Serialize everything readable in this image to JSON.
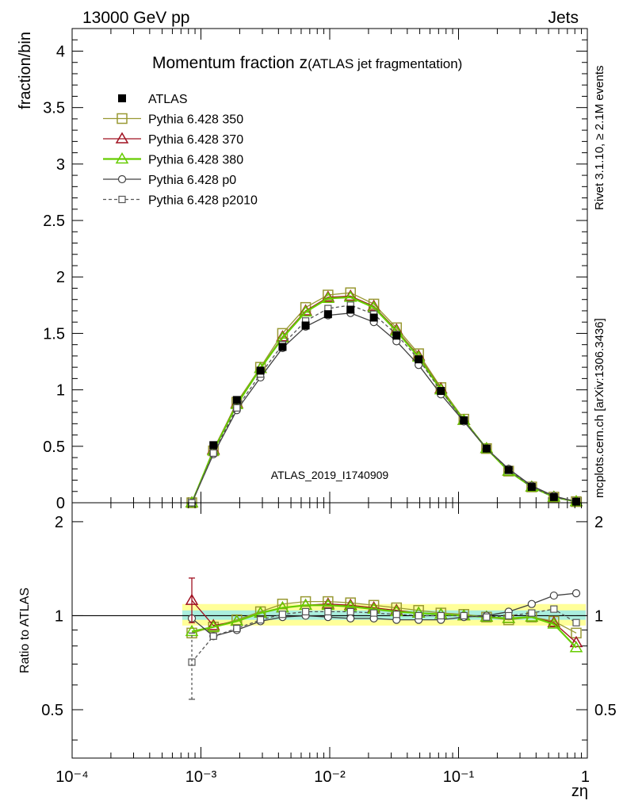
{
  "header": {
    "left": "13000 GeV pp",
    "right": "Jets",
    "side_top": "Rivet 3.1.10, ≥ 2.1M events",
    "side_bottom": "mcplots.cern.ch [arXiv:1306.3436]"
  },
  "chart_data": {
    "type": "scatter",
    "title_main": "Momentum fraction z",
    "title_sub": "(ATLAS jet fragmentation)",
    "ylabel": "fraction/bin",
    "ratio_ylabel": "Ratio to ATLAS",
    "xlabel": "zη",
    "watermark": "ATLAS_2019_I1740909",
    "xscale": "log",
    "xlim": [
      0.0001,
      1
    ],
    "ylim": [
      0,
      4.2
    ],
    "ratio_ylim": [
      0.35,
      2.3
    ],
    "x_tick_labels": [
      "10⁻⁴",
      "10⁻³",
      "10⁻²",
      "10⁻¹",
      "1"
    ],
    "y_tick_labels": [
      "0",
      "0.5",
      "1",
      "1.5",
      "2",
      "2.5",
      "3",
      "3.5",
      "4"
    ],
    "ratio_tick_labels": [
      "0.5",
      "1",
      "2"
    ],
    "legend_position": "top-left",
    "x": [
      0.00085,
      0.00125,
      0.0019,
      0.0029,
      0.0043,
      0.0065,
      0.0097,
      0.0145,
      0.022,
      0.033,
      0.049,
      0.073,
      0.11,
      0.165,
      0.245,
      0.37,
      0.55,
      0.82
    ],
    "data": {
      "name": "ATLAS",
      "values": [
        0.0,
        0.51,
        0.91,
        1.17,
        1.38,
        1.57,
        1.67,
        1.71,
        1.64,
        1.48,
        1.27,
        0.99,
        0.73,
        0.48,
        0.29,
        0.14,
        0.05,
        0.01
      ]
    },
    "series": [
      {
        "name": "Pythia 6.428 350",
        "color": "#999933",
        "marker": "square-open",
        "dash": "solid",
        "values": [
          0.0,
          0.46,
          0.89,
          1.2,
          1.5,
          1.73,
          1.84,
          1.86,
          1.76,
          1.55,
          1.32,
          1.02,
          0.74,
          0.48,
          0.28,
          0.14,
          0.05,
          0.01
        ],
        "ratio": [
          0.88,
          0.92,
          0.97,
          1.03,
          1.09,
          1.11,
          1.11,
          1.1,
          1.08,
          1.06,
          1.04,
          1.02,
          1.01,
          0.99,
          0.97,
          0.99,
          0.96,
          0.88
        ]
      },
      {
        "name": "Pythia 6.428 370",
        "color": "#a01020",
        "marker": "triangle-open",
        "dash": "solid",
        "values": [
          0.0,
          0.47,
          0.88,
          1.19,
          1.47,
          1.7,
          1.82,
          1.83,
          1.74,
          1.53,
          1.3,
          1.01,
          0.73,
          0.48,
          0.28,
          0.14,
          0.05,
          0.01
        ],
        "ratio": [
          1.12,
          0.93,
          0.96,
          1.02,
          1.06,
          1.08,
          1.09,
          1.08,
          1.06,
          1.04,
          1.02,
          1.01,
          1.0,
          0.99,
          0.98,
          0.99,
          0.95,
          0.82
        ]
      },
      {
        "name": "Pythia 6.428 380",
        "color": "#66cc00",
        "marker": "triangle-open",
        "dash": "solid",
        "values": [
          0.0,
          0.46,
          0.87,
          1.19,
          1.46,
          1.69,
          1.81,
          1.82,
          1.73,
          1.52,
          1.29,
          1.0,
          0.73,
          0.48,
          0.28,
          0.14,
          0.05,
          0.01
        ],
        "ratio": [
          0.89,
          0.92,
          0.96,
          1.02,
          1.06,
          1.08,
          1.08,
          1.07,
          1.05,
          1.03,
          1.02,
          1.01,
          1.0,
          0.99,
          0.98,
          0.99,
          0.94,
          0.79
        ]
      },
      {
        "name": "Pythia 6.428 p0",
        "color": "#404040",
        "marker": "circle-open",
        "dash": "solid",
        "values": [
          0.0,
          0.43,
          0.82,
          1.11,
          1.37,
          1.56,
          1.66,
          1.68,
          1.6,
          1.43,
          1.22,
          0.96,
          0.72,
          0.48,
          0.3,
          0.15,
          0.06,
          0.01
        ],
        "ratio": [
          0.98,
          0.86,
          0.9,
          0.96,
          0.99,
          1.0,
          0.99,
          0.98,
          0.98,
          0.97,
          0.97,
          0.97,
          0.99,
          1.0,
          1.03,
          1.09,
          1.16,
          1.18
        ]
      },
      {
        "name": "Pythia 6.428 p2010",
        "color": "#555555",
        "marker": "square-open-small",
        "dash": "dashed",
        "values": [
          0.0,
          0.44,
          0.84,
          1.14,
          1.4,
          1.61,
          1.72,
          1.75,
          1.67,
          1.49,
          1.27,
          0.99,
          0.73,
          0.48,
          0.29,
          0.14,
          0.05,
          0.01
        ],
        "ratio": [
          0.71,
          0.86,
          0.91,
          0.97,
          1.01,
          1.03,
          1.03,
          1.03,
          1.02,
          1.01,
          1.0,
          1.0,
          1.0,
          0.99,
          1.0,
          1.02,
          1.05,
          0.95
        ]
      }
    ],
    "ratio_error": {
      "x_index": 0,
      "series": "Pythia 6.428 370",
      "low": 0.95,
      "high": 1.32
    },
    "ratio_error_dashed": {
      "x_index": 0,
      "series": "Pythia 6.428 p2010",
      "low": 0.54,
      "high": 0.88
    }
  }
}
